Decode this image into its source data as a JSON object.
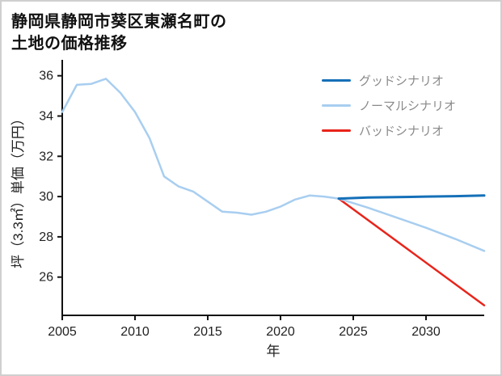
{
  "page": {
    "title_line1": "静岡県静岡市葵区東瀬名町の",
    "title_line2": "土地の価格推移"
  },
  "chart_data": {
    "type": "line",
    "title": "静岡県静岡市葵区東瀬名町の土地の価格推移",
    "xlabel": "年",
    "ylabel": "坪（3.3㎡）単価（万円）",
    "xlim": [
      2005,
      2034
    ],
    "ylim": [
      24.1,
      36.55
    ],
    "xticks": [
      2005,
      2010,
      2015,
      2020,
      2025,
      2030
    ],
    "yticks": [
      26,
      28,
      30,
      32,
      34,
      36
    ],
    "grid": false,
    "legend_position": "top-right",
    "axis_color": "#111111",
    "series": [
      {
        "name": "グッドシナリオ",
        "color": "#1570b8",
        "width": 3,
        "x": [
          2024,
          2026,
          2028,
          2030,
          2032,
          2034
        ],
        "y": [
          29.9,
          29.95,
          29.97,
          30.0,
          30.02,
          30.05
        ]
      },
      {
        "name": "ノーマルシナリオ",
        "color": "#a8cef0",
        "width": 2.5,
        "x": [
          2005,
          2006,
          2007,
          2008,
          2009,
          2010,
          2011,
          2012,
          2013,
          2014,
          2015,
          2016,
          2017,
          2018,
          2019,
          2020,
          2021,
          2022,
          2023,
          2024,
          2026,
          2028,
          2030,
          2032,
          2034
        ],
        "y": [
          34.2,
          35.55,
          35.6,
          35.85,
          35.15,
          34.2,
          32.9,
          31.0,
          30.5,
          30.25,
          29.75,
          29.25,
          29.2,
          29.1,
          29.25,
          29.5,
          29.85,
          30.05,
          30.0,
          29.9,
          29.45,
          28.95,
          28.45,
          27.9,
          27.3
        ]
      },
      {
        "name": "バッドシナリオ",
        "color": "#e8241b",
        "width": 2.5,
        "x": [
          2024,
          2034
        ],
        "y": [
          29.9,
          24.6
        ]
      }
    ]
  }
}
